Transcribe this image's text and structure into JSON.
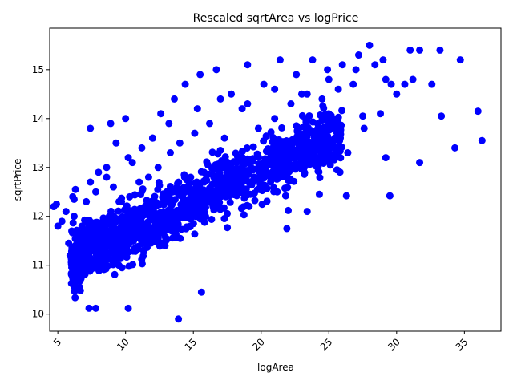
{
  "chart_data": {
    "type": "scatter",
    "title": "Rescaled sqrtArea vs logPrice",
    "xlabel": "logArea",
    "ylabel": "sqrtPrice",
    "xlim": [
      4.4,
      37.7
    ],
    "ylim": [
      9.65,
      15.85
    ],
    "xticks": [
      5,
      10,
      15,
      20,
      25,
      30,
      35
    ],
    "yticks": [
      10,
      11,
      12,
      13,
      14,
      15
    ],
    "xtick_rotation": 45,
    "marker_color": "#0000ff",
    "grid": false,
    "series": [
      {
        "points_note_removed": true,
        "x": [
          4.7,
          4.9,
          5.0,
          5.3,
          5.6,
          5.8,
          5.9,
          6.0,
          6.1,
          6.2,
          6.3,
          6.4,
          6.6,
          6.8,
          7.0,
          7.1,
          7.3,
          7.4,
          7.4,
          7.6,
          7.7,
          7.8,
          8.0,
          8.1,
          8.3,
          8.5,
          8.6,
          8.8,
          8.9,
          9.0,
          9.1,
          9.3,
          9.5,
          9.7,
          10.0,
          10.2,
          10.3,
          10.5,
          10.8,
          11.0,
          11.2,
          11.5,
          11.7,
          12.0,
          12.2,
          12.4,
          12.6,
          13.0,
          13.3,
          13.6,
          13.8,
          14.0,
          14.4,
          14.8,
          15.1,
          15.5,
          15.8,
          16.2,
          16.7,
          17.0,
          17.3,
          17.8,
          18.2,
          18.6,
          19.0,
          19.5,
          19.8,
          20.2,
          20.7,
          21.0,
          21.4,
          21.8,
          22.2,
          22.6,
          23.0,
          23.4,
          23.8,
          24.2,
          24.5,
          24.9,
          25.3,
          25.7,
          26.0,
          26.4,
          26.8,
          27.2,
          27.6,
          28.0,
          28.4,
          28.8,
          29.2,
          29.6,
          30.0,
          30.6,
          31.2,
          31.7,
          32.6,
          33.2,
          34.3,
          34.7,
          36.0,
          36.3,
          7.3,
          7.8,
          10.2,
          13.9,
          15.6,
          21.9,
          23.4,
          22.0,
          24.3,
          26.3,
          29.5,
          29.2,
          25.6,
          27.5,
          31.7,
          33.3,
          6.2,
          8.6,
          10.2,
          12.0,
          13.2,
          15.3,
          17.0,
          19.0,
          21.0,
          23.0,
          25.0,
          27.0,
          29.0,
          31.0
        ],
        "y": [
          12.2,
          12.25,
          11.8,
          11.9,
          12.1,
          11.45,
          11.2,
          11.05,
          12.4,
          12.0,
          12.55,
          11.4,
          11.6,
          11.3,
          11.5,
          12.3,
          11.2,
          12.7,
          13.8,
          11.4,
          11.8,
          12.5,
          12.9,
          11.6,
          11.3,
          11.7,
          13.0,
          12.0,
          13.9,
          11.1,
          12.6,
          13.5,
          11.0,
          12.3,
          14.0,
          11.5,
          12.4,
          13.1,
          11.9,
          12.7,
          13.4,
          11.8,
          12.8,
          13.6,
          12.2,
          13.0,
          14.1,
          12.4,
          13.3,
          14.4,
          12.6,
          13.5,
          14.7,
          12.8,
          13.7,
          14.9,
          12.7,
          13.9,
          15.0,
          12.4,
          13.6,
          14.5,
          12.6,
          14.2,
          15.1,
          12.8,
          13.8,
          14.7,
          12.7,
          14.0,
          15.2,
          12.9,
          14.3,
          14.9,
          13.1,
          14.5,
          15.2,
          13.0,
          14.4,
          15.0,
          13.2,
          14.6,
          15.1,
          13.3,
          14.7,
          15.3,
          13.8,
          15.5,
          15.1,
          14.1,
          14.8,
          14.7,
          14.5,
          14.7,
          14.8,
          15.4,
          14.7,
          15.4,
          13.4,
          15.2,
          14.15,
          13.55,
          10.12,
          10.12,
          10.12,
          9.9,
          10.45,
          11.75,
          12.1,
          12.12,
          12.45,
          12.42,
          12.42,
          13.2,
          12.95,
          14.05,
          13.1,
          14.05,
          12.35,
          12.8,
          13.2,
          13.6,
          13.9,
          14.2,
          14.4,
          14.3,
          14.6,
          14.5,
          14.8,
          15.0,
          15.2,
          15.4
        ]
      }
    ]
  }
}
